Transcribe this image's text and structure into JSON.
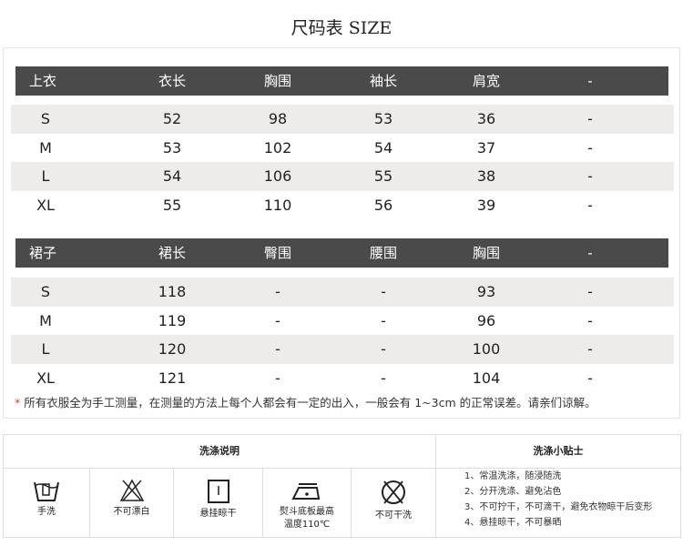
{
  "title": "尺码表 SIZE",
  "tops": {
    "headers": [
      "上衣",
      "衣长",
      "胸围",
      "袖长",
      "肩宽",
      "-"
    ],
    "rows": [
      [
        "S",
        "52",
        "98",
        "53",
        "36",
        "-"
      ],
      [
        "M",
        "53",
        "102",
        "54",
        "37",
        "-"
      ],
      [
        "L",
        "54",
        "106",
        "55",
        "38",
        "-"
      ],
      [
        "XL",
        "55",
        "110",
        "56",
        "39",
        "-"
      ]
    ]
  },
  "skirt": {
    "headers": [
      "裙子",
      "裙长",
      "臀围",
      "腰围",
      "胸围",
      "-"
    ],
    "rows": [
      [
        "S",
        "118",
        "-",
        "-",
        "93",
        "-"
      ],
      [
        "M",
        "119",
        "-",
        "-",
        "96",
        "-"
      ],
      [
        "L",
        "120",
        "-",
        "-",
        "100",
        "-"
      ],
      [
        "XL",
        "121",
        "-",
        "-",
        "104",
        "-"
      ]
    ]
  },
  "note": {
    "star": "*",
    "text": "所有衣服全为手工测量，在测量的方法上每个人都会有一定的出入，一般会有 1~3cm 的正常误差。请亲们谅解。"
  },
  "care": {
    "title": "洗涤说明",
    "tips_title": "洗涤小贴士",
    "items": [
      {
        "icon": "hand-wash-icon",
        "label": "手洗"
      },
      {
        "icon": "no-bleach-icon",
        "label": "不可漂白"
      },
      {
        "icon": "hang-dry-icon",
        "label": "悬挂晾干"
      },
      {
        "icon": "iron-icon",
        "label": "熨斗底板最高",
        "label2": "温度110℃"
      },
      {
        "icon": "no-dry-clean-icon",
        "label": "不可干洗"
      }
    ],
    "tips": [
      "1、常温洗涤，随浸随洗",
      "2、分开洗涤、避免沾色",
      "3、不可拧干，不可滴干，避免衣物晾干后变形",
      "4、悬挂晾干，不可暴晒"
    ]
  }
}
